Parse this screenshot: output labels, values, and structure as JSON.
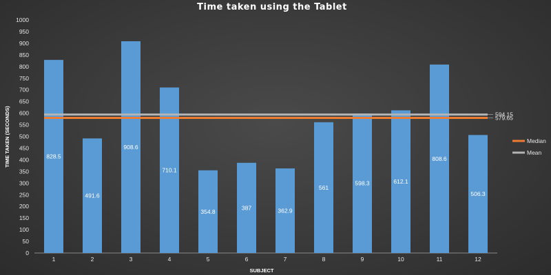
{
  "chart_data": {
    "type": "bar",
    "title": "Time taken  using  the Tablet",
    "xlabel": "SUBJECT",
    "ylabel": "TIME TAKEN (SECONDS)",
    "ylim": [
      0,
      1000
    ],
    "ytick_step": 50,
    "categories": [
      "1",
      "2",
      "3",
      "4",
      "5",
      "6",
      "7",
      "8",
      "9",
      "10",
      "11",
      "12"
    ],
    "values": [
      828.5,
      491.6,
      908.6,
      710.1,
      354.8,
      387,
      362.9,
      561,
      598.3,
      612.1,
      808.6,
      506.3
    ],
    "reference_lines": [
      {
        "name": "Mean",
        "value": 594.15,
        "label": "594.15",
        "color": "#b4b4b4"
      },
      {
        "name": "Median",
        "value": 579.65,
        "label": "579.65",
        "color": "#ed7d31"
      }
    ],
    "legend": {
      "placement": "right",
      "entries": [
        {
          "name": "Median",
          "color": "#ed7d31"
        },
        {
          "name": "Mean",
          "color": "#b4b4b4"
        }
      ]
    },
    "bar_color": "#5b9bd5",
    "grid": false
  }
}
